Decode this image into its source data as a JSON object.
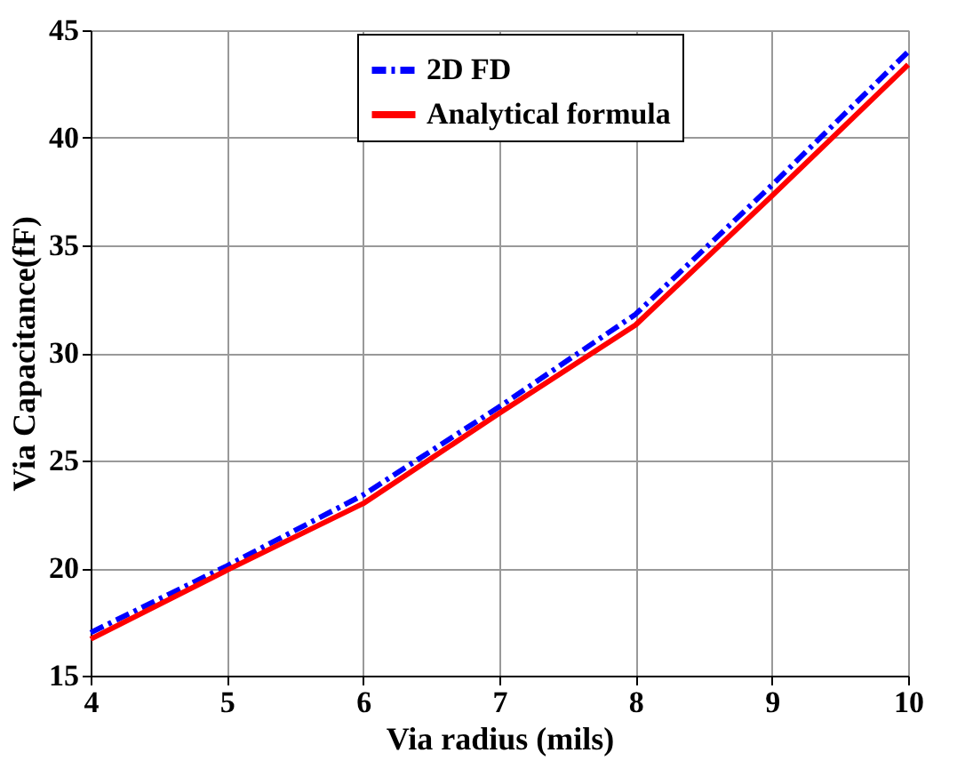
{
  "chart_data": {
    "type": "line",
    "xlabel": "Via  radius (mils)",
    "ylabel": "Via Capacitance(fF)",
    "x": [
      4,
      5,
      6,
      7,
      8,
      9,
      10
    ],
    "series": [
      {
        "name": "2D FD",
        "color": "#0000ff",
        "line_style": "dashed",
        "values": [
          17.0,
          20.1,
          23.4,
          27.5,
          31.8,
          37.8,
          44.0
        ]
      },
      {
        "name": "Analytical formula",
        "color": "#ff0000",
        "line_style": "solid",
        "values": [
          16.7,
          19.9,
          23.0,
          27.2,
          31.3,
          37.3,
          43.4
        ]
      }
    ],
    "xlim": [
      4,
      10
    ],
    "xticks": [
      4,
      5,
      6,
      7,
      8,
      9,
      10
    ],
    "ylim": [
      15,
      45
    ],
    "yticks": [
      15,
      20,
      25,
      30,
      35,
      40,
      45
    ],
    "grid": true,
    "legend": "top right",
    "marker": "none"
  }
}
